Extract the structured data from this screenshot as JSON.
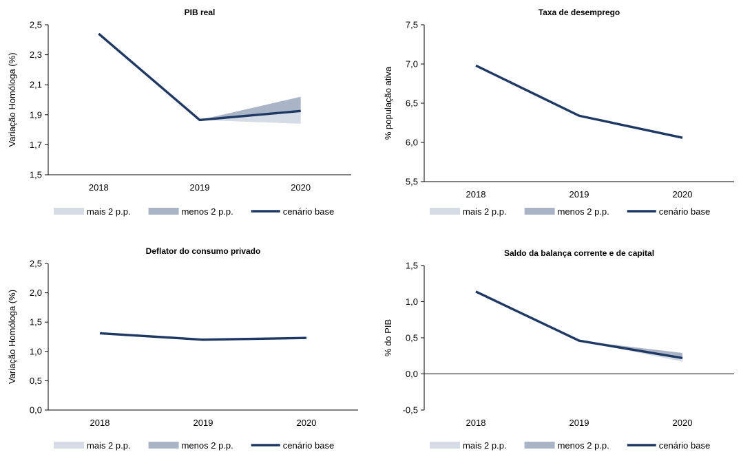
{
  "colors": {
    "mais": "#d6dce6",
    "menos": "#a9b4c6",
    "base": "#1f3864",
    "axis": "#000000"
  },
  "chart_data": [
    {
      "type": "line",
      "title": "PIB real",
      "ylabel": "Variação Homóloga (%)",
      "categories": [
        "2018",
        "2019",
        "2020"
      ],
      "ylim": [
        1.5,
        2.5
      ],
      "yticks": [
        "1,5",
        "1,7",
        "1,9",
        "2,1",
        "2,3",
        "2,5"
      ],
      "ytick_values": [
        1.5,
        1.7,
        1.9,
        2.1,
        2.3,
        2.5
      ],
      "series": [
        {
          "name": "mais 2 p.p.",
          "values": [
            null,
            1.865,
            1.84
          ]
        },
        {
          "name": "menos 2 p.p.",
          "values": [
            null,
            1.865,
            2.02
          ]
        },
        {
          "name": "cenário base",
          "values": [
            2.44,
            1.865,
            1.925
          ]
        }
      ]
    },
    {
      "type": "line",
      "title": "Taxa de desemprego",
      "ylabel": "% população ativa",
      "categories": [
        "2018",
        "2019",
        "2020"
      ],
      "ylim": [
        5.5,
        7.5
      ],
      "yticks": [
        "5,5",
        "6,0",
        "6,5",
        "7,0",
        "7,5"
      ],
      "ytick_values": [
        5.5,
        6.0,
        6.5,
        7.0,
        7.5
      ],
      "series": [
        {
          "name": "mais 2 p.p.",
          "values": [
            null,
            6.34,
            6.06
          ]
        },
        {
          "name": "menos 2 p.p.",
          "values": [
            null,
            6.34,
            6.06
          ]
        },
        {
          "name": "cenário base",
          "values": [
            6.98,
            6.34,
            6.06
          ]
        }
      ]
    },
    {
      "type": "line",
      "title": "Deflator do consumo privado",
      "ylabel": "Variação Homóloga (%)",
      "categories": [
        "2018",
        "2019",
        "2020"
      ],
      "ylim": [
        0.0,
        2.5
      ],
      "yticks": [
        "0,0",
        "0,5",
        "1,0",
        "1,5",
        "2,0",
        "2,5"
      ],
      "ytick_values": [
        0.0,
        0.5,
        1.0,
        1.5,
        2.0,
        2.5
      ],
      "series": [
        {
          "name": "mais 2 p.p.",
          "values": [
            null,
            1.2,
            1.23
          ]
        },
        {
          "name": "menos 2 p.p.",
          "values": [
            null,
            1.2,
            1.23
          ]
        },
        {
          "name": "cenário base",
          "values": [
            1.31,
            1.2,
            1.23
          ]
        }
      ]
    },
    {
      "type": "line",
      "title": "Saldo da balança corrente e de capital",
      "ylabel": "% do PIB",
      "categories": [
        "2018",
        "2019",
        "2020"
      ],
      "ylim": [
        -0.5,
        1.5
      ],
      "yticks": [
        "-0,5",
        "0,0",
        "0,5",
        "1,0",
        "1,5"
      ],
      "ytick_values": [
        -0.5,
        0.0,
        0.5,
        1.0,
        1.5
      ],
      "zero_line": true,
      "series": [
        {
          "name": "mais 2 p.p.",
          "values": [
            null,
            0.46,
            0.17
          ]
        },
        {
          "name": "menos 2 p.p.",
          "values": [
            null,
            0.46,
            0.29
          ]
        },
        {
          "name": "cenário base",
          "values": [
            1.14,
            0.46,
            0.22
          ]
        }
      ]
    }
  ]
}
